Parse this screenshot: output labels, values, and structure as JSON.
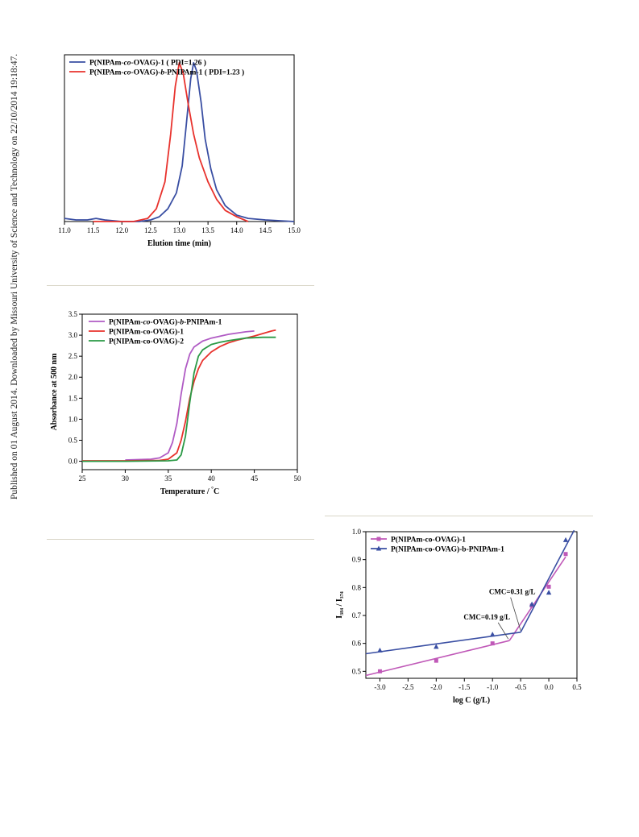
{
  "margin_note": "Published on 01 August 2014. Downloaded by Missouri University of Science and Technology on 22/10/2014 19:18:47.",
  "chart_data": [
    {
      "id": "gpc",
      "type": "line",
      "title": "",
      "xlabel": "Elution time (min)",
      "ylabel": "",
      "xlim": [
        11.0,
        15.0
      ],
      "ylim": [
        0,
        1.05
      ],
      "xticks": [
        "11.0",
        "11.5",
        "12.0",
        "12.5",
        "13.0",
        "13.5",
        "14.0",
        "14.5",
        "15.0"
      ],
      "yticks": [],
      "legend_position": "top-left",
      "grid": false,
      "series": [
        {
          "name": "P(NIPAm-co-OVAG)-1 ( PDI=1.26 )",
          "color": "#3a4fa3",
          "points": [
            [
              11.0,
              0.02
            ],
            [
              11.2,
              0.01
            ],
            [
              11.4,
              0.01
            ],
            [
              11.55,
              0.02
            ],
            [
              11.7,
              0.01
            ],
            [
              12.0,
              0.0
            ],
            [
              12.3,
              0.0
            ],
            [
              12.5,
              0.01
            ],
            [
              12.65,
              0.03
            ],
            [
              12.8,
              0.08
            ],
            [
              12.95,
              0.18
            ],
            [
              13.05,
              0.35
            ],
            [
              13.12,
              0.6
            ],
            [
              13.2,
              0.9
            ],
            [
              13.25,
              1.0
            ],
            [
              13.3,
              0.95
            ],
            [
              13.38,
              0.75
            ],
            [
              13.45,
              0.52
            ],
            [
              13.55,
              0.33
            ],
            [
              13.65,
              0.2
            ],
            [
              13.8,
              0.1
            ],
            [
              14.0,
              0.04
            ],
            [
              14.2,
              0.02
            ],
            [
              14.5,
              0.01
            ],
            [
              15.0,
              0.0
            ]
          ]
        },
        {
          "name": "P(NIPAm-co-OVAG)-b-PNIPAm-1 ( PDI=1.23 )",
          "color": "#e8322d",
          "points": [
            [
              11.5,
              0.0
            ],
            [
              11.8,
              0.0
            ],
            [
              12.2,
              0.0
            ],
            [
              12.45,
              0.02
            ],
            [
              12.6,
              0.08
            ],
            [
              12.75,
              0.25
            ],
            [
              12.85,
              0.55
            ],
            [
              12.93,
              0.85
            ],
            [
              13.0,
              1.0
            ],
            [
              13.07,
              0.93
            ],
            [
              13.15,
              0.75
            ],
            [
              13.25,
              0.55
            ],
            [
              13.35,
              0.4
            ],
            [
              13.5,
              0.25
            ],
            [
              13.65,
              0.14
            ],
            [
              13.8,
              0.07
            ],
            [
              14.0,
              0.03
            ],
            [
              14.2,
              0.0
            ]
          ]
        }
      ]
    },
    {
      "id": "turbidity",
      "type": "line",
      "title": "",
      "xlabel": "Temperature / °C",
      "ylabel": "Absorbance at 500 nm",
      "xlim": [
        25,
        50
      ],
      "ylim": [
        -0.2,
        3.5
      ],
      "xticks": [
        "25",
        "30",
        "35",
        "40",
        "45",
        "50"
      ],
      "yticks": [
        "0.0",
        "0.5",
        "1.0",
        "1.5",
        "2.0",
        "2.5",
        "3.0",
        "3.5"
      ],
      "legend_position": "top-left",
      "grid": false,
      "series": [
        {
          "name": "P(NIPAm-co-OVAG)-b-PNIPAm-1",
          "color": "#b05bc4",
          "points": [
            [
              30,
              0.03
            ],
            [
              33,
              0.05
            ],
            [
              34,
              0.08
            ],
            [
              35,
              0.2
            ],
            [
              35.5,
              0.45
            ],
            [
              36,
              0.9
            ],
            [
              36.5,
              1.6
            ],
            [
              37,
              2.2
            ],
            [
              37.5,
              2.55
            ],
            [
              38,
              2.72
            ],
            [
              39,
              2.86
            ],
            [
              40,
              2.93
            ],
            [
              42,
              3.02
            ],
            [
              44,
              3.08
            ],
            [
              45,
              3.1
            ]
          ]
        },
        {
          "name": "P(NIPAm-co-OVAG)-1",
          "color": "#e8322d",
          "points": [
            [
              25,
              0.01
            ],
            [
              30,
              0.01
            ],
            [
              34,
              0.02
            ],
            [
              35,
              0.05
            ],
            [
              36,
              0.2
            ],
            [
              36.5,
              0.5
            ],
            [
              37,
              0.95
            ],
            [
              37.5,
              1.5
            ],
            [
              38,
              1.9
            ],
            [
              38.5,
              2.2
            ],
            [
              39,
              2.4
            ],
            [
              40,
              2.6
            ],
            [
              41,
              2.73
            ],
            [
              42,
              2.82
            ],
            [
              43,
              2.88
            ],
            [
              44,
              2.93
            ],
            [
              45,
              2.98
            ],
            [
              46,
              3.04
            ],
            [
              47,
              3.1
            ],
            [
              47.5,
              3.12
            ]
          ]
        },
        {
          "name": "P(NIPAm-co-OVAG)-2",
          "color": "#2a9a45",
          "points": [
            [
              25,
              0.0
            ],
            [
              30,
              0.0
            ],
            [
              35,
              0.01
            ],
            [
              36,
              0.03
            ],
            [
              36.5,
              0.15
            ],
            [
              37,
              0.6
            ],
            [
              37.5,
              1.4
            ],
            [
              38,
              2.1
            ],
            [
              38.5,
              2.5
            ],
            [
              39,
              2.65
            ],
            [
              40,
              2.78
            ],
            [
              41,
              2.83
            ],
            [
              42,
              2.87
            ],
            [
              44,
              2.93
            ],
            [
              46,
              2.95
            ],
            [
              47.5,
              2.95
            ]
          ]
        }
      ]
    },
    {
      "id": "cmc",
      "type": "scatter",
      "title": "",
      "xlabel": "log C (g/L)",
      "ylabel": "I384 / I374",
      "xlim": [
        -3.25,
        0.5
      ],
      "ylim": [
        0.475,
        1.0
      ],
      "xticks": [
        "-3.0",
        "-2.5",
        "-2.0",
        "-1.5",
        "-1.0",
        "-0.5",
        "0.0",
        "0.5"
      ],
      "yticks": [
        "0.5",
        "0.6",
        "0.7",
        "0.8",
        "0.9",
        "1.0"
      ],
      "legend_position": "top-left",
      "grid": false,
      "annotations": [
        "CMC=0.31 g/L",
        "CMC=0.19 g/L"
      ],
      "series": [
        {
          "name": "P(NIPAm-co-OVAG)-1",
          "color": "#c059b8",
          "marker": "square",
          "points": [
            [
              -3.0,
              0.5
            ],
            [
              -2.0,
              0.538
            ],
            [
              -1.0,
              0.6
            ],
            [
              -0.3,
              0.735
            ],
            [
              0.0,
              0.803
            ],
            [
              0.3,
              0.92
            ]
          ],
          "fit_lines": [
            [
              [
                -3.25,
                0.485
              ],
              [
                -0.7,
                0.61
              ]
            ],
            [
              [
                -0.7,
                0.61
              ],
              [
                0.3,
                0.91
              ]
            ]
          ]
        },
        {
          "name": "P(NIPAm-co-OVAG)-b-PNIPAm-1",
          "color": "#3a4fa3",
          "marker": "triangle",
          "points": [
            [
              -3.0,
              0.575
            ],
            [
              -2.0,
              0.588
            ],
            [
              -1.0,
              0.632
            ],
            [
              -0.3,
              0.74
            ],
            [
              0.0,
              0.782
            ],
            [
              0.3,
              0.97
            ]
          ],
          "fit_lines": [
            [
              [
                -3.25,
                0.563
              ],
              [
                -0.5,
                0.64
              ]
            ],
            [
              [
                -0.5,
                0.64
              ],
              [
                0.45,
                1.005
              ]
            ]
          ]
        }
      ]
    }
  ]
}
